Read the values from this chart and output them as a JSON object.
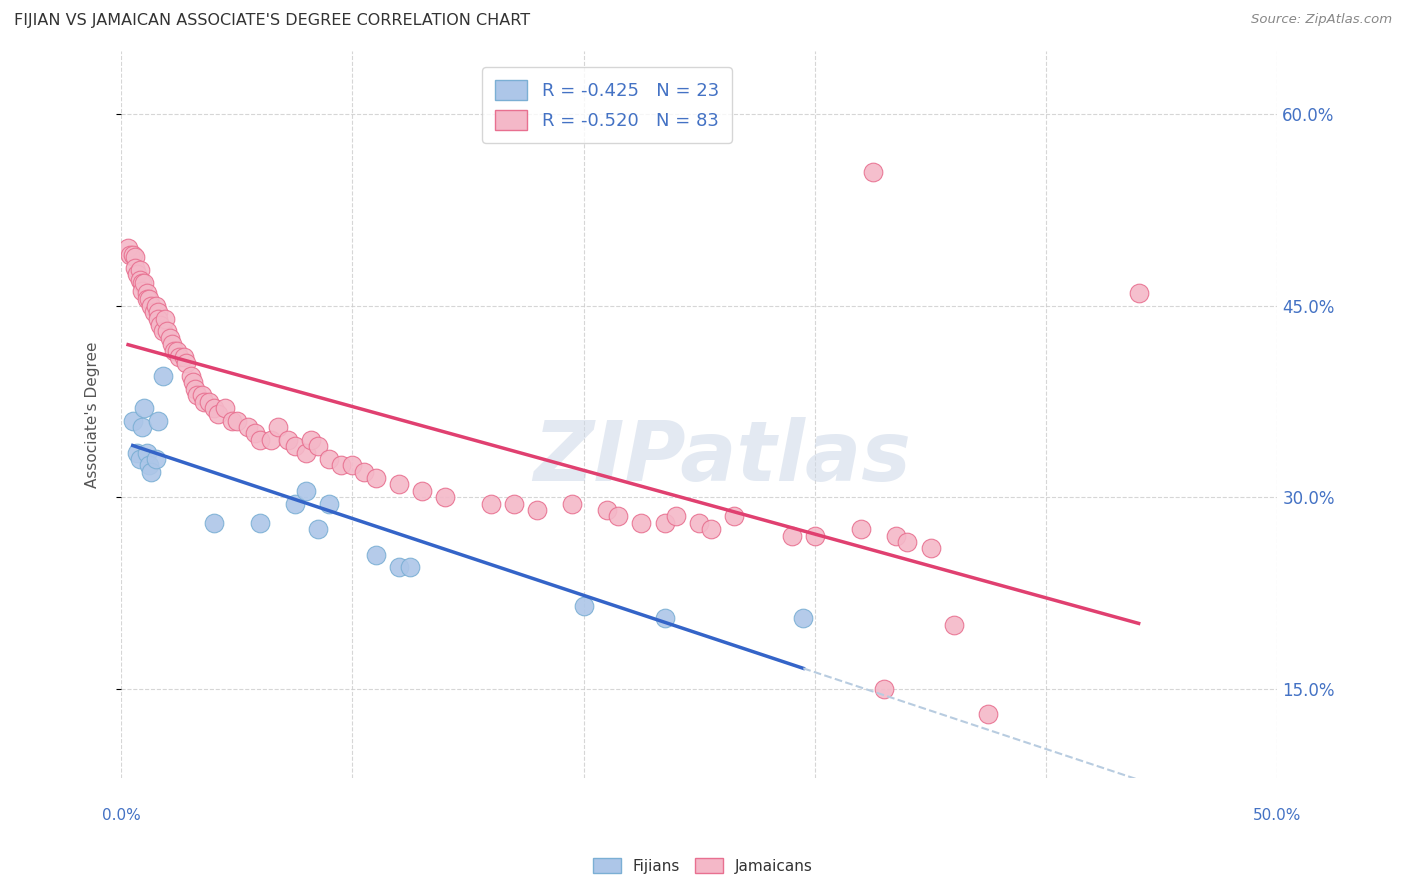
{
  "title": "FIJIAN VS JAMAICAN ASSOCIATE'S DEGREE CORRELATION CHART",
  "source": "Source: ZipAtlas.com",
  "ylabel": "Associate's Degree",
  "ytick_vals": [
    0.15,
    0.3,
    0.45,
    0.6
  ],
  "ytick_labels": [
    "15.0%",
    "30.0%",
    "45.0%",
    "60.0%"
  ],
  "xtick_vals": [
    0.0,
    0.1,
    0.2,
    0.3,
    0.4,
    0.5
  ],
  "xlim": [
    0.0,
    0.5
  ],
  "ylim": [
    0.08,
    0.65
  ],
  "fijian_fill": "#adc6e8",
  "fijian_edge": "#7bafd4",
  "jamaican_fill": "#f4b8c8",
  "jamaican_edge": "#e87090",
  "trend_fijian": "#3464c8",
  "trend_jamaican": "#e04070",
  "trend_dashed": "#b8cce0",
  "r_fijian": -0.425,
  "n_fijian": 23,
  "r_jamaican": -0.52,
  "n_jamaican": 83,
  "legend_label_fijian": "Fijians",
  "legend_label_jamaican": "Jamaicans",
  "background_color": "#ffffff",
  "grid_color": "#cccccc",
  "title_color": "#333333",
  "axis_label_color": "#4472c4",
  "watermark": "ZIPatlas",
  "fijian_x": [
    0.005,
    0.007,
    0.008,
    0.009,
    0.01,
    0.011,
    0.012,
    0.013,
    0.015,
    0.016,
    0.018,
    0.04,
    0.06,
    0.075,
    0.08,
    0.085,
    0.09,
    0.11,
    0.12,
    0.125,
    0.2,
    0.235,
    0.295
  ],
  "fijian_y": [
    0.36,
    0.335,
    0.33,
    0.355,
    0.37,
    0.335,
    0.325,
    0.32,
    0.33,
    0.36,
    0.395,
    0.28,
    0.28,
    0.295,
    0.305,
    0.275,
    0.295,
    0.255,
    0.245,
    0.245,
    0.215,
    0.205,
    0.205
  ],
  "jamaican_x": [
    0.003,
    0.004,
    0.005,
    0.006,
    0.006,
    0.007,
    0.008,
    0.008,
    0.009,
    0.009,
    0.01,
    0.011,
    0.011,
    0.012,
    0.013,
    0.014,
    0.015,
    0.016,
    0.016,
    0.017,
    0.018,
    0.019,
    0.02,
    0.021,
    0.022,
    0.023,
    0.024,
    0.025,
    0.027,
    0.028,
    0.03,
    0.031,
    0.032,
    0.033,
    0.035,
    0.036,
    0.038,
    0.04,
    0.042,
    0.045,
    0.048,
    0.05,
    0.055,
    0.058,
    0.06,
    0.065,
    0.068,
    0.072,
    0.075,
    0.08,
    0.082,
    0.085,
    0.09,
    0.095,
    0.1,
    0.105,
    0.11,
    0.12,
    0.13,
    0.14,
    0.16,
    0.17,
    0.18,
    0.195,
    0.21,
    0.215,
    0.225,
    0.235,
    0.24,
    0.25,
    0.255,
    0.265,
    0.29,
    0.3,
    0.32,
    0.325,
    0.33,
    0.335,
    0.34,
    0.35,
    0.36,
    0.375,
    0.44
  ],
  "jamaican_y": [
    0.495,
    0.49,
    0.49,
    0.488,
    0.48,
    0.475,
    0.478,
    0.47,
    0.468,
    0.462,
    0.468,
    0.46,
    0.455,
    0.455,
    0.45,
    0.445,
    0.45,
    0.445,
    0.44,
    0.435,
    0.43,
    0.44,
    0.43,
    0.425,
    0.42,
    0.415,
    0.415,
    0.41,
    0.41,
    0.405,
    0.395,
    0.39,
    0.385,
    0.38,
    0.38,
    0.375,
    0.375,
    0.37,
    0.365,
    0.37,
    0.36,
    0.36,
    0.355,
    0.35,
    0.345,
    0.345,
    0.355,
    0.345,
    0.34,
    0.335,
    0.345,
    0.34,
    0.33,
    0.325,
    0.325,
    0.32,
    0.315,
    0.31,
    0.305,
    0.3,
    0.295,
    0.295,
    0.29,
    0.295,
    0.29,
    0.285,
    0.28,
    0.28,
    0.285,
    0.28,
    0.275,
    0.285,
    0.27,
    0.27,
    0.275,
    0.555,
    0.15,
    0.27,
    0.265,
    0.26,
    0.2,
    0.13,
    0.46
  ]
}
